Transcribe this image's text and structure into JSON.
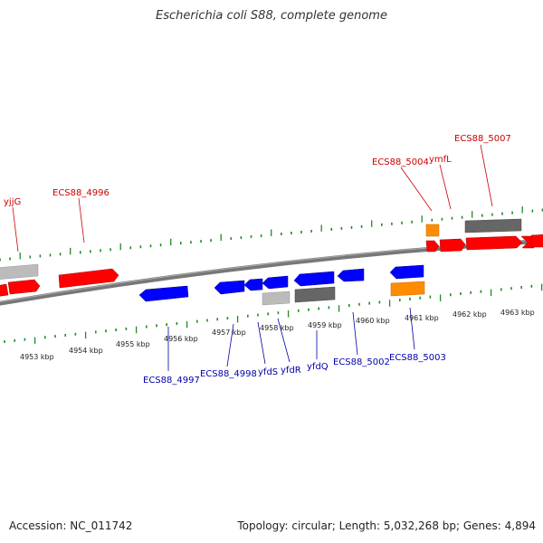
{
  "title": "Escherichia coli S88, complete genome",
  "footer": {
    "accession": "Accession: NC_011742",
    "summary": "Topology: circular; Length: 5,032,268 bp; Genes: 4,894"
  },
  "colors": {
    "forward_gene": "#ff0000",
    "reverse_gene": "#0000ff",
    "rna": "#ff8c00",
    "pseudo_light": "#bbbbbb",
    "pseudo_dark": "#666666",
    "tick": "#228b22",
    "backbone": "#777777",
    "forward_label": "#cc0000",
    "reverse_label": "#0000aa"
  },
  "kbp_ticks": [
    "4953 kbp",
    "4954 kbp",
    "4955 kbp",
    "4956 kbp",
    "4957 kbp",
    "4958 kbp",
    "4959 kbp",
    "4960 kbp",
    "4961 kbp",
    "4962 kbp",
    "4963 kbp"
  ],
  "forward_labels": [
    "yjjG",
    "ECS88_4996",
    "ECS88_5004",
    "ymfL",
    "ECS88_5007"
  ],
  "reverse_labels": [
    "ECS88_4997",
    "ECS88_4998",
    "yfdS",
    "yfdR",
    "yfdQ",
    "ECS88_5002",
    "ECS88_5003"
  ]
}
